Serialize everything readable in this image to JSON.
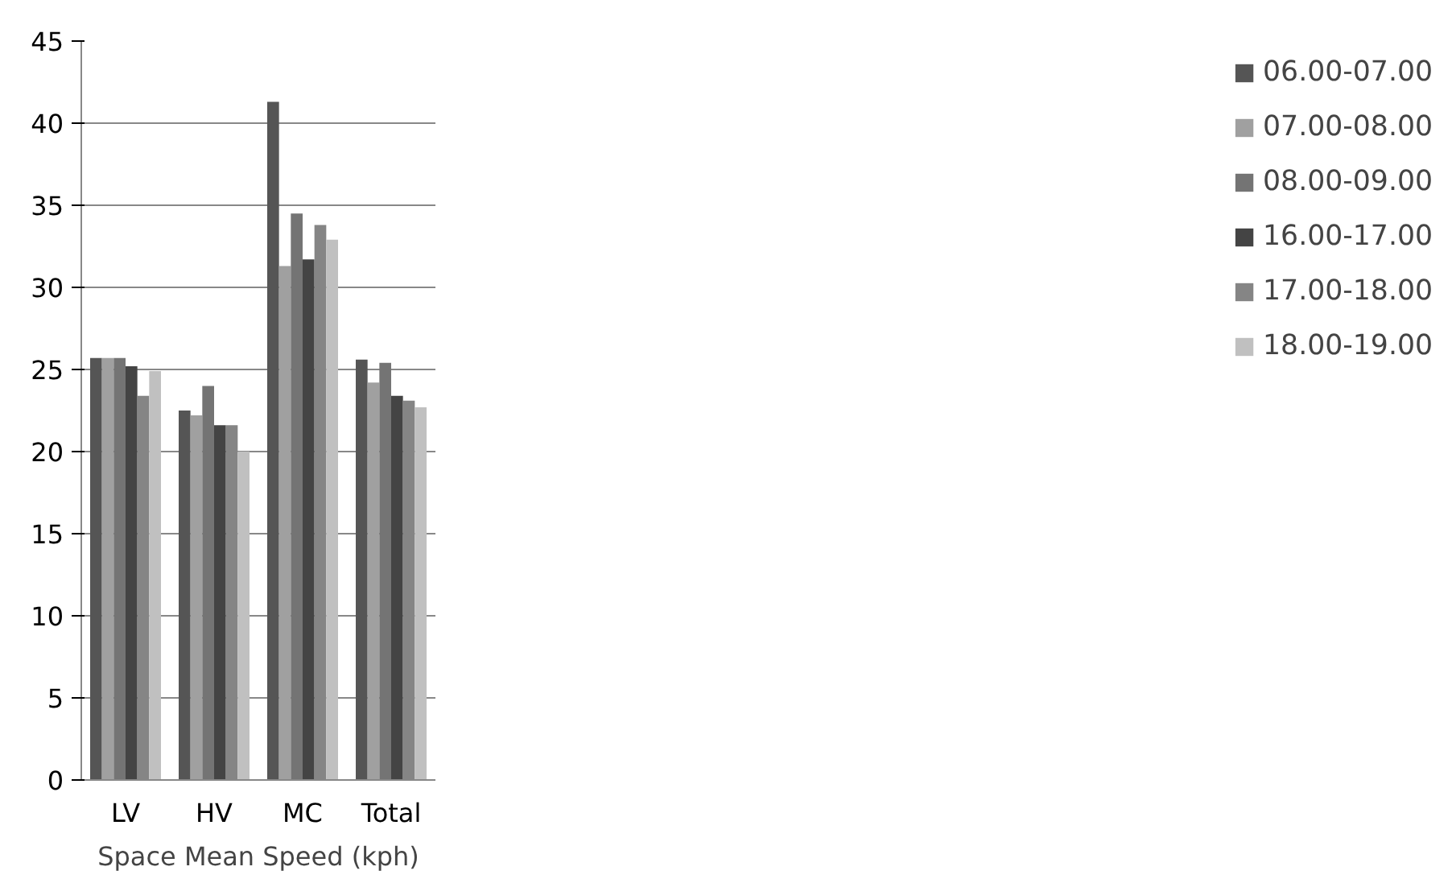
{
  "chart_data": {
    "type": "bar",
    "xlabel": "Space Mean Speed (kph)",
    "categories": [
      "LV",
      "HV",
      "MC",
      "Total"
    ],
    "series": [
      {
        "name": "06.00-07.00",
        "color": "#555555",
        "values": [
          25.7,
          22.5,
          41.3,
          25.6
        ]
      },
      {
        "name": "07.00-08.00",
        "color": "#a0a0a0",
        "values": [
          25.7,
          22.2,
          31.3,
          24.2
        ]
      },
      {
        "name": "08.00-09.00",
        "color": "#747474",
        "values": [
          25.7,
          24.0,
          34.5,
          25.4
        ]
      },
      {
        "name": "16.00-17.00",
        "color": "#444444",
        "values": [
          25.2,
          21.6,
          31.7,
          23.4
        ]
      },
      {
        "name": "17.00-18.00",
        "color": "#858585",
        "values": [
          23.4,
          21.6,
          33.8,
          23.1
        ]
      },
      {
        "name": "18.00-19.00",
        "color": "#c0c0c0",
        "values": [
          24.9,
          20.0,
          32.9,
          22.7
        ]
      }
    ],
    "ylim": [
      0,
      45
    ],
    "yticks": [
      0,
      5,
      10,
      15,
      20,
      25,
      30,
      35,
      40,
      45
    ],
    "grid": "y",
    "legend": "right"
  }
}
